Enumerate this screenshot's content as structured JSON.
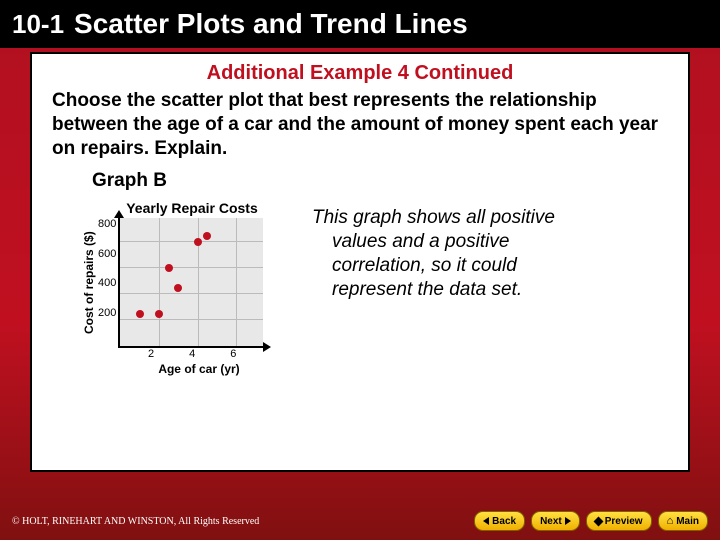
{
  "header": {
    "chapter": "10-1",
    "title": "Scatter Plots and Trend Lines"
  },
  "subtitle": "Additional Example 4 Continued",
  "prompt": "Choose the scatter plot that best represents the relationship between the age of a car and the amount of money spent each year on repairs. Explain.",
  "graph_label": "Graph B",
  "explanation": "This graph shows all positive values  and a positive correlation, so it could represent the data set.",
  "chart": {
    "type": "scatter",
    "title": "Yearly Repair Costs",
    "xlabel": "Age of car (yr)",
    "ylabel": "Cost of repairs ($)",
    "background_color": "#e8e8e8",
    "grid_color": "#bbbbbb",
    "dot_color": "#c01020",
    "axis_color": "#000000",
    "xlim": [
      0,
      7.5
    ],
    "ylim": [
      0,
      1000
    ],
    "xticks": [
      2,
      4,
      6
    ],
    "yticks": [
      200,
      400,
      600,
      800
    ],
    "points": [
      {
        "x": 1,
        "y": 250
      },
      {
        "x": 2,
        "y": 250
      },
      {
        "x": 2.5,
        "y": 600
      },
      {
        "x": 3,
        "y": 450
      },
      {
        "x": 4,
        "y": 800
      },
      {
        "x": 4.5,
        "y": 850
      }
    ]
  },
  "nav": {
    "back": "Back",
    "next": "Next",
    "preview": "Preview",
    "main": "Main"
  },
  "copyright": "© HOLT, RINEHART AND WINSTON,  All Rights Reserved"
}
